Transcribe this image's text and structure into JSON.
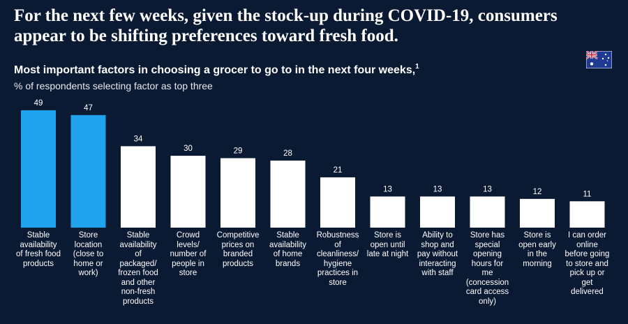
{
  "headline": "For the next few weeks, given the stock-up during COVID-19, consumers appear to be shifting preferences toward fresh food.",
  "flag_icon": "australia-flag-icon",
  "chart_data": {
    "type": "bar",
    "title": "Most important factors in choosing a grocer to go to in the next four weeks,",
    "title_footnote": "1",
    "subtitle": "% of respondents selecting factor as top three",
    "categories": [
      "Stable availability of fresh food products",
      "Store location (close to home or work)",
      "Stable availability of packaged/ frozen food and other non-fresh products",
      "Crowd levels/ number of people in store",
      "Competitive prices on branded products",
      "Stable availability of home brands",
      "Robustness of cleanliness/ hygiene practices in store",
      "Store is open until late at night",
      "Ability to shop and pay without interacting with staff",
      "Store has special opening hours for me (concession card access only)",
      "Store is open early in the morning",
      "I can order online before going to store and pick up or get delivered"
    ],
    "values": [
      49,
      47,
      34,
      30,
      29,
      28,
      21,
      13,
      13,
      13,
      12,
      11
    ],
    "highlight_color": "#1fa3ec",
    "bar_color": "#ffffff",
    "highlighted_indices": [
      0,
      1
    ],
    "grid": false,
    "legend": "none"
  }
}
